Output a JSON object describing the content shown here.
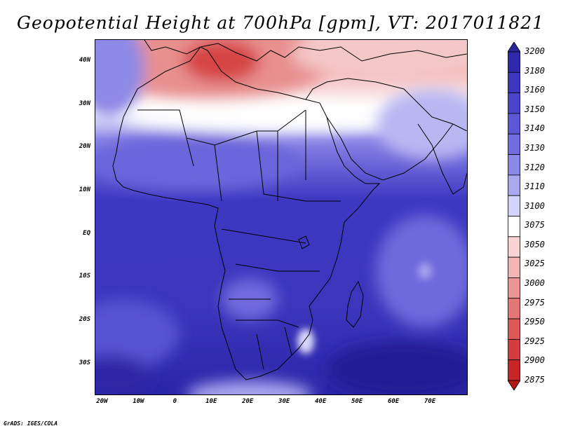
{
  "title": "Geopotential Height at 700hPa [gpm], VT: 2017011821",
  "credit": "GrADS: IGES/COLA",
  "lat_labels": [
    {
      "text": "40N",
      "lat": 40
    },
    {
      "text": "30N",
      "lat": 30
    },
    {
      "text": "20N",
      "lat": 20
    },
    {
      "text": "10N",
      "lat": 10
    },
    {
      "text": "EQ",
      "lat": 0
    },
    {
      "text": "10S",
      "lat": -10
    },
    {
      "text": "20S",
      "lat": -20
    },
    {
      "text": "30S",
      "lat": -30
    }
  ],
  "lon_labels": [
    {
      "text": "20W",
      "lon": -20
    },
    {
      "text": "10W",
      "lon": -10
    },
    {
      "text": "0",
      "lon": 0
    },
    {
      "text": "10E",
      "lon": 10
    },
    {
      "text": "20E",
      "lon": 20
    },
    {
      "text": "30E",
      "lon": 30
    },
    {
      "text": "40E",
      "lon": 40
    },
    {
      "text": "50E",
      "lon": 50
    },
    {
      "text": "60E",
      "lon": 60
    },
    {
      "text": "70E",
      "lon": 70
    }
  ],
  "map_extent": {
    "lon_min": -22,
    "lon_max": 80,
    "lat_min": -37,
    "lat_max": 45
  },
  "colorbar": {
    "labels": [
      "3200",
      "3180",
      "3160",
      "3150",
      "3140",
      "3130",
      "3120",
      "3110",
      "3100",
      "3075",
      "3050",
      "3025",
      "3000",
      "2975",
      "2950",
      "2925",
      "2900",
      "2875"
    ],
    "colors": [
      "#2b249e",
      "#3029ae",
      "#3c36c1",
      "#4a45cc",
      "#5c57d6",
      "#716ddf",
      "#8a87e8",
      "#aaa8f0",
      "#d4d3fa",
      "#ffffff",
      "#f7d3d3",
      "#f1b5b5",
      "#ea9696",
      "#e47777",
      "#dd5959",
      "#d43d3d",
      "#c62626",
      "#b51515"
    ]
  }
}
